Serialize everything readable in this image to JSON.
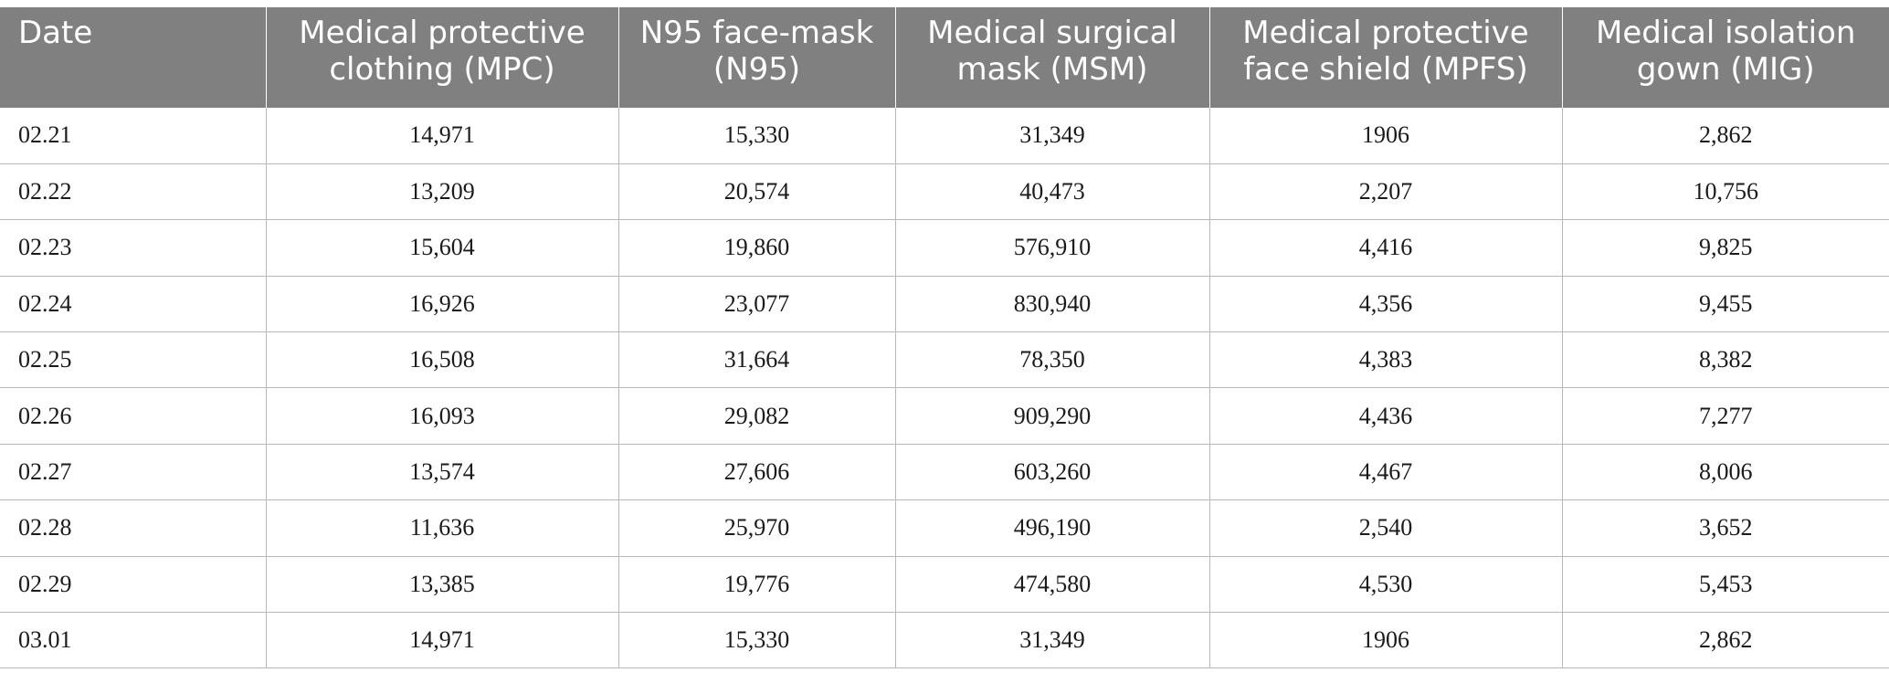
{
  "table": {
    "headers": [
      "Date",
      "Medical protective clothing (MPC)",
      "N95 face-mask (N95)",
      "Medical surgical mask (MSM)",
      "Medical protective face shield (MPFS)",
      "Medical isolation gown (MIG)"
    ],
    "rows": [
      [
        "02.21",
        "14,971",
        "15,330",
        "31,349",
        "1906",
        "2,862"
      ],
      [
        "02.22",
        "13,209",
        "20,574",
        "40,473",
        "2,207",
        "10,756"
      ],
      [
        "02.23",
        "15,604",
        "19,860",
        "576,910",
        "4,416",
        "9,825"
      ],
      [
        "02.24",
        "16,926",
        "23,077",
        "830,940",
        "4,356",
        "9,455"
      ],
      [
        "02.25",
        "16,508",
        "31,664",
        "78,350",
        "4,383",
        "8,382"
      ],
      [
        "02.26",
        "16,093",
        "29,082",
        "909,290",
        "4,436",
        "7,277"
      ],
      [
        "02.27",
        "13,574",
        "27,606",
        "603,260",
        "4,467",
        "8,006"
      ],
      [
        "02.28",
        "11,636",
        "25,970",
        "496,190",
        "2,540",
        "3,652"
      ],
      [
        "02.29",
        "13,385",
        "19,776",
        "474,580",
        "4,530",
        "5,453"
      ],
      [
        "03.01",
        "14,971",
        "15,330",
        "31,349",
        "1906",
        "2,862"
      ]
    ]
  },
  "colors": {
    "header_background": "#808080",
    "header_text": "#ffffff",
    "row_border": "#b8b8b8"
  }
}
